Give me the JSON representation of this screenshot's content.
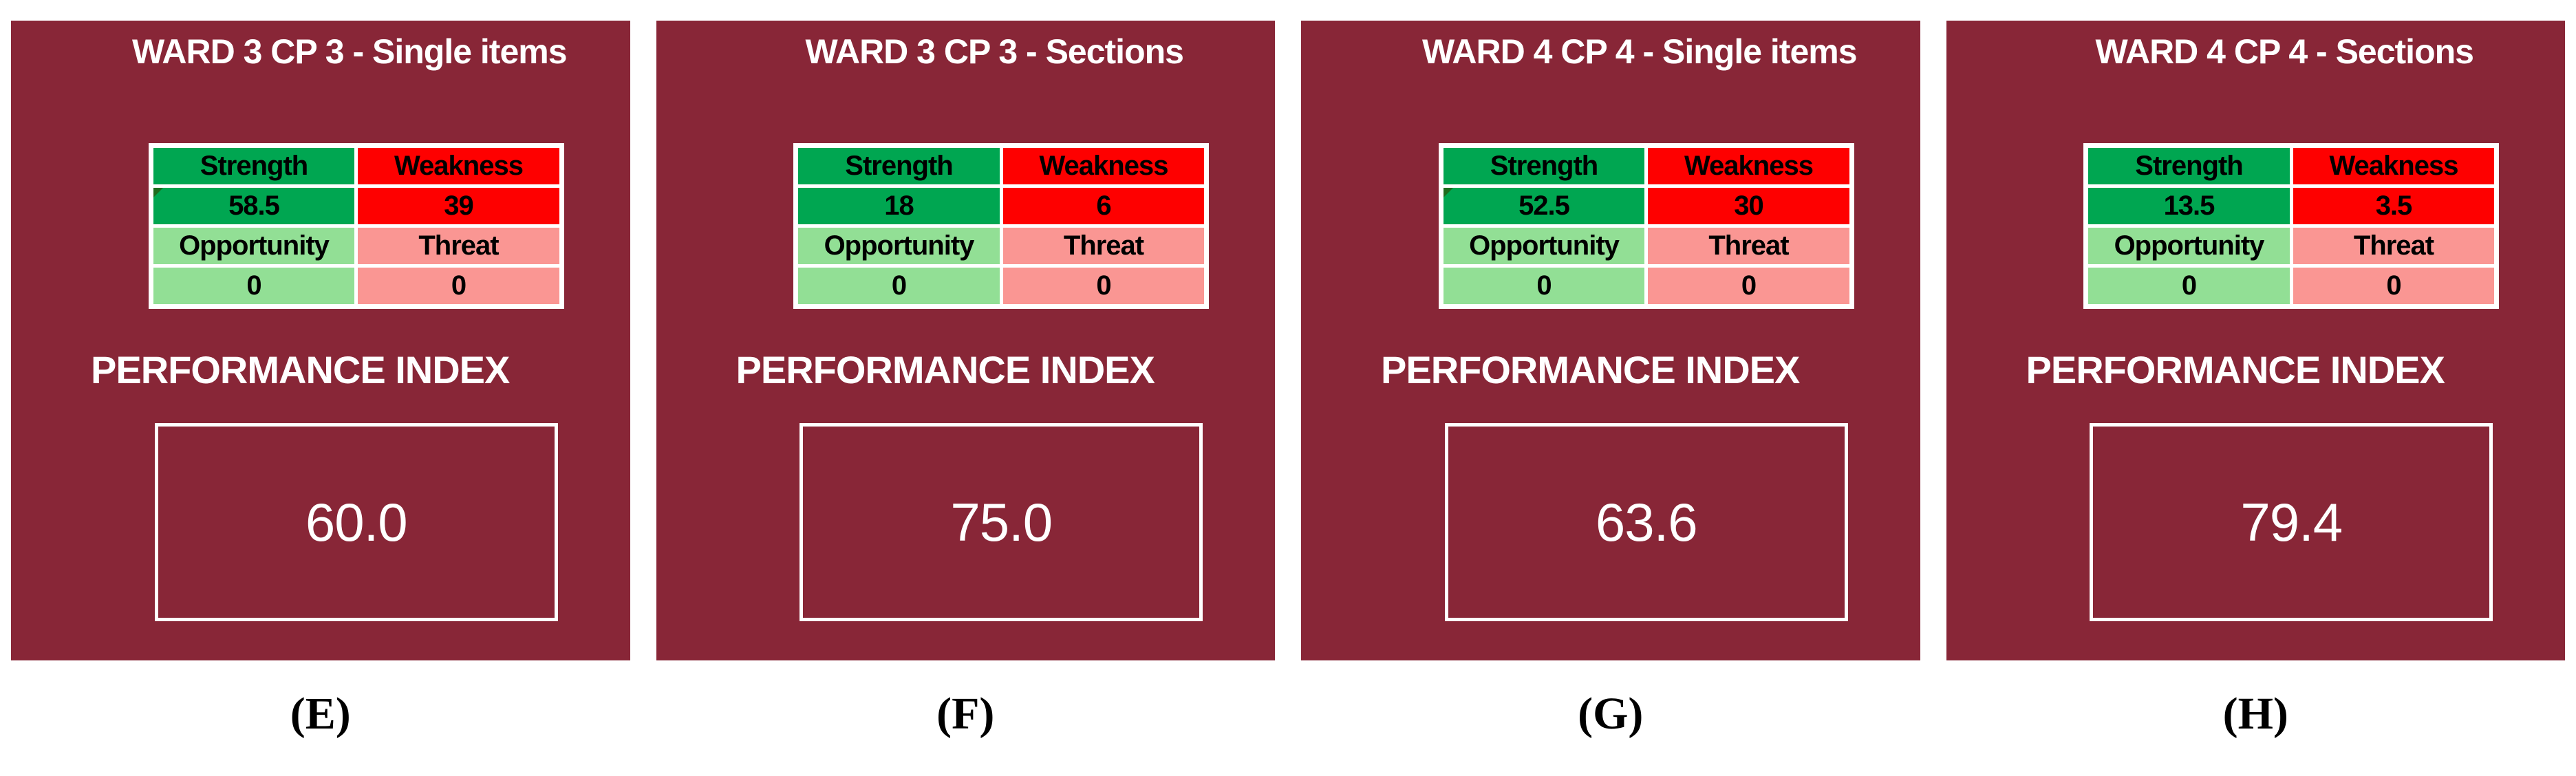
{
  "figure": {
    "background": "#FFFFFF",
    "panel_color": "#882637",
    "colors": {
      "strength": "#00A651",
      "weakness": "#FE0000",
      "opportunity": "#92DF95",
      "threat": "#FA9693",
      "cell_text": "#000000",
      "panel_text": "#FFFFFF",
      "corner_marker": "#1E6C1E",
      "subfigure_label_text": "#000000"
    },
    "swot_headers": {
      "strength": "Strength",
      "weakness": "Weakness",
      "opportunity": "Opportunity",
      "threat": "Threat"
    },
    "performance_label": "PERFORMANCE INDEX",
    "panels": [
      {
        "title": "WARD 3 CP 3 - Single items",
        "strength": "58.5",
        "weakness": "39",
        "opportunity": "0",
        "threat": "0",
        "performance_index": "60.0",
        "label": "(E)",
        "strength_marker": true
      },
      {
        "title": "WARD 3 CP 3 - Sections",
        "strength": "18",
        "weakness": "6",
        "opportunity": "0",
        "threat": "0",
        "performance_index": "75.0",
        "label": "(F)",
        "strength_marker": false
      },
      {
        "title": "WARD 4 CP 4 - Single items",
        "strength": "52.5",
        "weakness": "30",
        "opportunity": "0",
        "threat": "0",
        "performance_index": "63.6",
        "label": "(G)",
        "strength_marker": true
      },
      {
        "title": "WARD 4 CP 4 - Sections",
        "strength": "13.5",
        "weakness": "3.5",
        "opportunity": "0",
        "threat": "0",
        "performance_index": "79.4",
        "label": "(H)",
        "strength_marker": false
      }
    ]
  },
  "chart_data": [
    {
      "type": "table",
      "title": "WARD 3 CP 3 - Single items",
      "subfigure_label": "(E)",
      "categories": [
        "Strength",
        "Weakness",
        "Opportunity",
        "Threat"
      ],
      "values": [
        58.5,
        39,
        0,
        0
      ],
      "performance_index": 60.0
    },
    {
      "type": "table",
      "title": "WARD 3 CP 3 - Sections",
      "subfigure_label": "(F)",
      "categories": [
        "Strength",
        "Weakness",
        "Opportunity",
        "Threat"
      ],
      "values": [
        18,
        6,
        0,
        0
      ],
      "performance_index": 75.0
    },
    {
      "type": "table",
      "title": "WARD 4 CP 4 - Single items",
      "subfigure_label": "(G)",
      "categories": [
        "Strength",
        "Weakness",
        "Opportunity",
        "Threat"
      ],
      "values": [
        52.5,
        30,
        0,
        0
      ],
      "performance_index": 63.6
    },
    {
      "type": "table",
      "title": "WARD 4 CP 4 - Sections",
      "subfigure_label": "(H)",
      "categories": [
        "Strength",
        "Weakness",
        "Opportunity",
        "Threat"
      ],
      "values": [
        13.5,
        3.5,
        0,
        0
      ],
      "performance_index": 79.4
    }
  ]
}
